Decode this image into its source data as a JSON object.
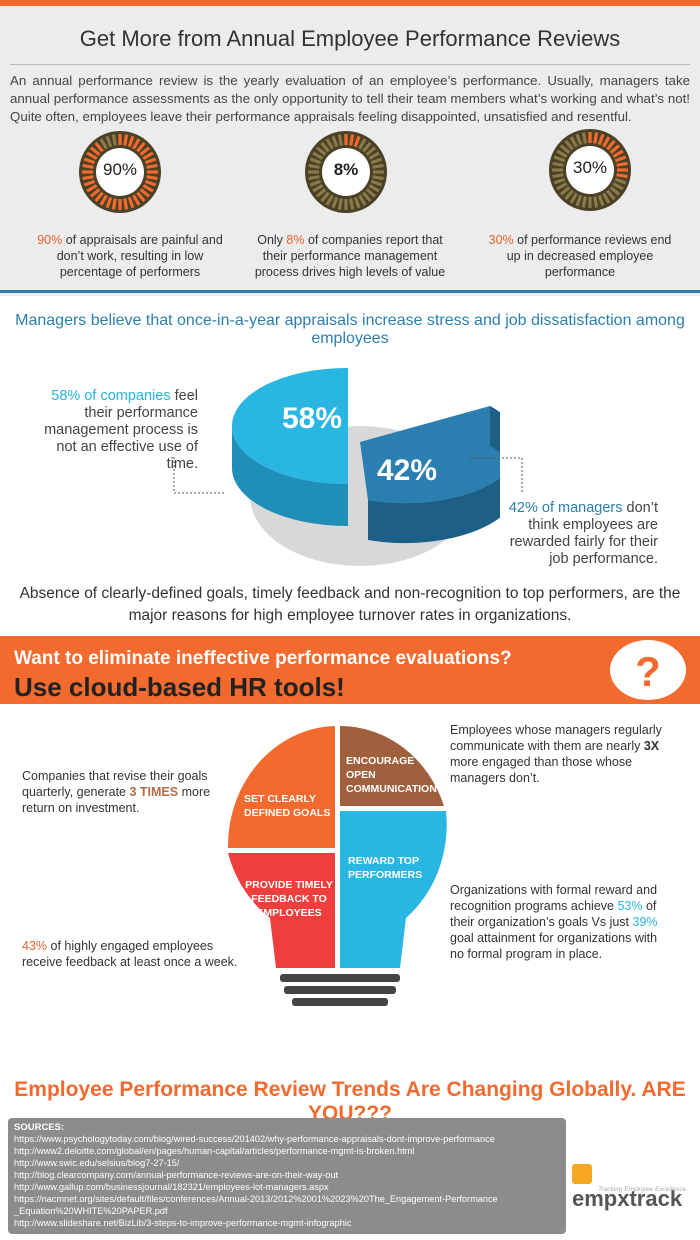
{
  "header": {
    "title": "Get More from Annual Employee Performance Reviews",
    "intro": "An annual performance review is the yearly evaluation of an employee’s performance. Usually, managers take annual performance assessments as the only opportunity to tell their team members what’s working and what’s not! Quite often, employees leave their performance appraisals feeling disappointed, unsatisfied and resentful."
  },
  "stats": [
    {
      "value": "90%",
      "fraction": 0.9,
      "lead": "90%",
      "text_before": "",
      "text_after": " of appraisals are painful and don’t work, resulting in low percentage of performers"
    },
    {
      "value": "8%",
      "fraction": 0.08,
      "lead": "8%",
      "text_before": "Only ",
      "text_after": " of companies report that their performance management process drives high levels of value"
    },
    {
      "value": "30%",
      "fraction": 0.3,
      "lead": "30%",
      "text_before": "",
      "text_after": " of performance reviews end up in decreased employee performance"
    }
  ],
  "section2": {
    "heading": "Managers believe that once-in-a-year appraisals increase stress and job dissatisfaction among employees",
    "left_lead": "58% of companies",
    "left_text": " feel their performance management process is not an effective use of time.",
    "right_lead": "42% of managers",
    "right_text": " don’t think employees are rewarded fairly for their job performance.",
    "absence": "Absence of clearly-defined goals, timely feedback and non-recognition to top performers, are the major reasons for high employee turnover rates in organizations."
  },
  "chart_data": {
    "type": "pie",
    "categories": [
      "58%",
      "42%"
    ],
    "values": [
      58,
      42
    ],
    "colors": [
      "#2ab6e3",
      "#2a7fb0"
    ]
  },
  "band": {
    "question": "Want to eliminate ineffective performance evaluations?",
    "answer": "Use cloud-based HR tools!",
    "icon": "question-mark-icon",
    "icon_glyph": "?"
  },
  "bulb": {
    "segments": [
      {
        "label": "ENCOURAGE OPEN COMMUNICATION",
        "color": "#a0603d"
      },
      {
        "label": "SET CLEARLY DEFINED GOALS",
        "color": "#f26a2e"
      },
      {
        "label": "REWARD TOP PERFORMERS",
        "color": "#2ab6e3"
      },
      {
        "label": "PROVIDE TIMELY FEEDBACK TO EMPLOYEES",
        "color": "#ef3f3d"
      }
    ],
    "notes": {
      "top_right_before": "Employees whose managers regularly communicate with them are nearly ",
      "top_right_lead": "3X",
      "top_right_after": " more engaged than those whose managers don’t.",
      "top_left_before": "Companies that revise their goals quarterly, generate ",
      "top_left_lead": "3 TIMES",
      "top_left_after": " more return on investment.",
      "bottom_right_before": "Organizations with formal reward and recognition programs achieve ",
      "bottom_right_lead1": "53%",
      "bottom_right_mid": " of their organization’s goals Vs just ",
      "bottom_right_lead2": "39%",
      "bottom_right_after": " goal attainment for organizations with no formal program in place.",
      "bottom_left_lead": "43%",
      "bottom_left_after": " of highly engaged employees receive feedback at least once a week."
    }
  },
  "footer": {
    "headline": "Employee Performance Review Trends Are Changing Globally. ARE YOU???",
    "sources_title": "SOURCES:",
    "sources": [
      "https://www.psychologytoday.com/blog/wired-success/201402/why-performance-appraisals-dont-improve-performance",
      "http://www2.deloitte.com/global/en/pages/human-capital/articles/performance-mgmt-is-broken.html",
      "http://www.swic.edu/selsius/blog7-27-15/",
      "http://blog.clearcompany.com/annual-performance-reviews-are-on-their-way-out",
      "http://www.gallup.com/businessjournal/182321/employees-lot-managers.aspx",
      "https://nacmnet.org/sites/default/files/conferences/Annual-2013/2012%2001%2023%20The_Engagement-Performance",
      "_Equation%20WHITE%20PAPER.pdf",
      "http://www.slideshare.net/BizLib/3-steps-to-improve-performance-mgmt-infographic"
    ],
    "logo_text": "empxtrack",
    "logo_tagline": "Tracking Employee Excellence"
  }
}
